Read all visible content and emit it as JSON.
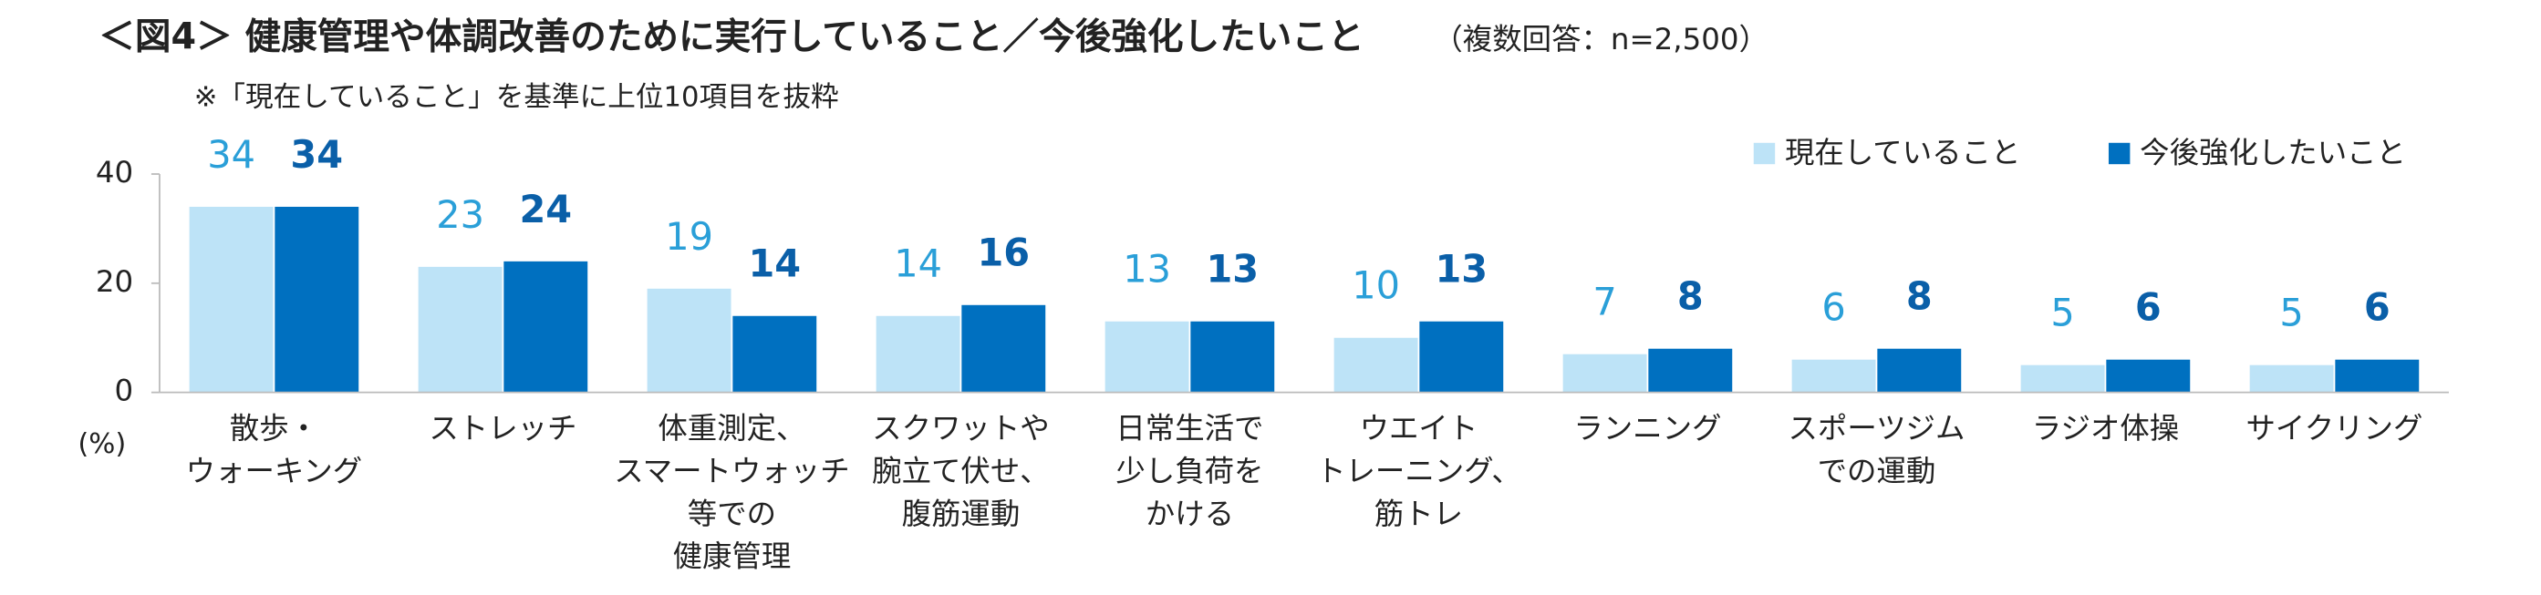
{
  "chart_data": {
    "type": "bar",
    "title": "＜図4＞ 健康管理や体調改善のために実行していること／今後強化したいこと",
    "title_note": "（複数回答：n=2,500）",
    "subtitle": "※「現在していること」を基準に上位10項目を抜粋",
    "y_unit_label": "(%)",
    "categories": [
      [
        "散歩・",
        "ウォーキング"
      ],
      [
        "ストレッチ"
      ],
      [
        "体重測定、",
        "スマートウォッチ",
        "等での",
        "健康管理"
      ],
      [
        "スクワットや",
        "腕立て伏せ、",
        "腹筋運動"
      ],
      [
        "日常生活で",
        "少し負荷を",
        "かける"
      ],
      [
        "ウエイト",
        "トレーニング、",
        "筋トレ"
      ],
      [
        "ランニング"
      ],
      [
        "スポーツジム",
        "での運動"
      ],
      [
        "ラジオ体操"
      ],
      [
        "サイクリング"
      ]
    ],
    "series": [
      {
        "name": "現在していること",
        "color": "#bde3f7",
        "label_color": "#2a9fd8",
        "label_bold": false,
        "values": [
          34,
          23,
          19,
          14,
          13,
          10,
          7,
          6,
          5,
          5
        ]
      },
      {
        "name": "今後強化したいこと",
        "color": "#0070c0",
        "label_color": "#0a5fa8",
        "label_bold": true,
        "values": [
          34,
          24,
          14,
          16,
          13,
          13,
          8,
          8,
          6,
          6
        ]
      }
    ],
    "ylim": [
      0,
      40
    ],
    "yticks": [
      0,
      20,
      40
    ],
    "grid": false,
    "legend": "top-right"
  }
}
